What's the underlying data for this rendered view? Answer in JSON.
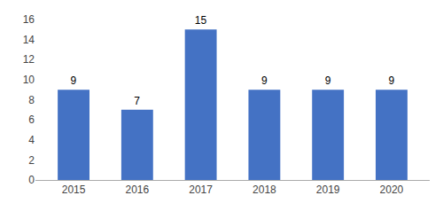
{
  "chart_data": {
    "type": "bar",
    "categories": [
      "2015",
      "2016",
      "2017",
      "2018",
      "2019",
      "2020"
    ],
    "values": [
      9,
      7,
      15,
      9,
      9,
      9
    ],
    "color": "#4472C4",
    "ylim": [
      0,
      16
    ],
    "yticks": [
      0,
      2,
      4,
      6,
      8,
      10,
      12,
      14,
      16
    ],
    "grid": false,
    "data_labels": true
  }
}
